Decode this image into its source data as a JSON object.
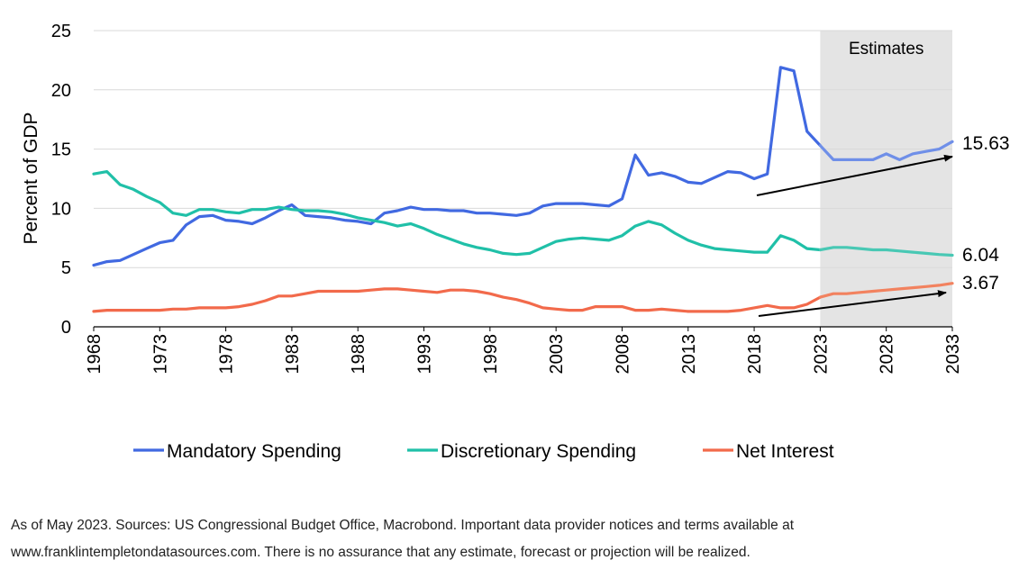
{
  "chart_data": {
    "type": "line",
    "title": "",
    "ylabel": "Percent of GDP",
    "xlabel": "",
    "ylim": [
      0,
      25
    ],
    "yticks": [
      "0",
      "5",
      "10",
      "15",
      "20",
      "25"
    ],
    "xlim": [
      1968,
      2033
    ],
    "xticks": [
      "1968",
      "1973",
      "1978",
      "1983",
      "1988",
      "1993",
      "1998",
      "2003",
      "2008",
      "2013",
      "2018",
      "2023",
      "2028",
      "2033"
    ],
    "grid": "horizontal",
    "legend_position": "bottom",
    "estimates": {
      "label": "Estimates",
      "from": 2023,
      "to": 2033
    },
    "x": [
      1968,
      1969,
      1970,
      1971,
      1972,
      1973,
      1974,
      1975,
      1976,
      1977,
      1978,
      1979,
      1980,
      1981,
      1982,
      1983,
      1984,
      1985,
      1986,
      1987,
      1988,
      1989,
      1990,
      1991,
      1992,
      1993,
      1994,
      1995,
      1996,
      1997,
      1998,
      1999,
      2000,
      2001,
      2002,
      2003,
      2004,
      2005,
      2006,
      2007,
      2008,
      2009,
      2010,
      2011,
      2012,
      2013,
      2014,
      2015,
      2016,
      2017,
      2018,
      2019,
      2020,
      2021,
      2022,
      2023,
      2024,
      2025,
      2026,
      2027,
      2028,
      2029,
      2030,
      2031,
      2032,
      2033
    ],
    "series": [
      {
        "name": "Mandatory Spending",
        "color": "#4169e1",
        "estimate_color": "#6f8fe8",
        "values": [
          5.2,
          5.5,
          5.6,
          6.1,
          6.6,
          7.1,
          7.3,
          8.6,
          9.3,
          9.4,
          9.0,
          8.9,
          8.7,
          9.2,
          9.8,
          10.3,
          9.4,
          9.3,
          9.2,
          9.0,
          8.9,
          8.7,
          9.6,
          9.8,
          10.1,
          9.9,
          9.9,
          9.8,
          9.8,
          9.6,
          9.6,
          9.5,
          9.4,
          9.6,
          10.2,
          10.4,
          10.4,
          10.4,
          10.3,
          10.2,
          10.8,
          14.5,
          12.8,
          13.0,
          12.7,
          12.2,
          12.1,
          12.6,
          13.1,
          13.0,
          12.5,
          12.9,
          21.9,
          21.6,
          16.5,
          15.3,
          14.1,
          14.1,
          14.1,
          14.1,
          14.6,
          14.1,
          14.6,
          14.8,
          15.0,
          15.63
        ]
      },
      {
        "name": "Discretionary Spending",
        "color": "#20c0a8",
        "estimate_color": "#48c8b4",
        "values": [
          12.9,
          13.1,
          12.0,
          11.6,
          11.0,
          10.5,
          9.6,
          9.4,
          9.9,
          9.9,
          9.7,
          9.6,
          9.9,
          9.9,
          10.1,
          9.9,
          9.8,
          9.8,
          9.7,
          9.5,
          9.2,
          9.0,
          8.8,
          8.5,
          8.7,
          8.3,
          7.8,
          7.4,
          7.0,
          6.7,
          6.5,
          6.2,
          6.1,
          6.2,
          6.7,
          7.2,
          7.4,
          7.5,
          7.4,
          7.3,
          7.7,
          8.5,
          8.9,
          8.6,
          7.9,
          7.3,
          6.9,
          6.6,
          6.5,
          6.4,
          6.3,
          6.3,
          7.7,
          7.3,
          6.6,
          6.5,
          6.7,
          6.7,
          6.6,
          6.5,
          6.5,
          6.4,
          6.3,
          6.2,
          6.1,
          6.04
        ]
      },
      {
        "name": "Net Interest",
        "color": "#f26a4b",
        "estimate_color": "#f2825f",
        "values": [
          1.3,
          1.4,
          1.4,
          1.4,
          1.4,
          1.4,
          1.5,
          1.5,
          1.6,
          1.6,
          1.6,
          1.7,
          1.9,
          2.2,
          2.6,
          2.6,
          2.8,
          3.0,
          3.0,
          3.0,
          3.0,
          3.1,
          3.2,
          3.2,
          3.1,
          3.0,
          2.9,
          3.1,
          3.1,
          3.0,
          2.8,
          2.5,
          2.3,
          2.0,
          1.6,
          1.5,
          1.4,
          1.4,
          1.7,
          1.7,
          1.7,
          1.4,
          1.4,
          1.5,
          1.4,
          1.3,
          1.3,
          1.3,
          1.3,
          1.4,
          1.6,
          1.8,
          1.6,
          1.6,
          1.9,
          2.5,
          2.8,
          2.8,
          2.9,
          3.0,
          3.1,
          3.2,
          3.3,
          3.4,
          3.5,
          3.67
        ]
      }
    ],
    "end_labels": [
      "15.63",
      "6.04",
      "3.67"
    ]
  },
  "footnote": {
    "line1": "As of May 2023. Sources: US Congressional Budget Office, Macrobond. Important data provider notices and terms available at",
    "line2": "www.franklintempletondatasources.com. There is no assurance that any estimate, forecast or projection will be realized."
  }
}
